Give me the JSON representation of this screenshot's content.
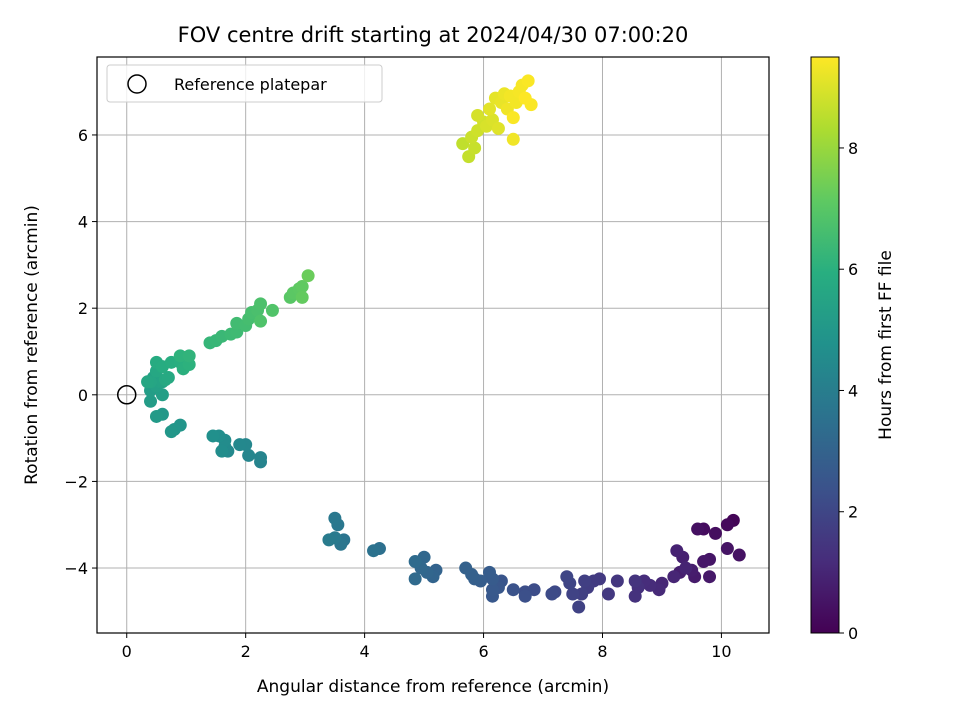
{
  "chart_data": {
    "type": "scatter",
    "title": "FOV centre drift starting at 2024/04/30 07:00:20",
    "xlabel": "Angular distance from reference (arcmin)",
    "ylabel": "Rotation from reference (arcmin)",
    "xlim": [
      -0.5,
      10.8
    ],
    "ylim": [
      -5.5,
      7.8
    ],
    "x_ticks": [
      0,
      2,
      4,
      6,
      8,
      10
    ],
    "y_ticks": [
      -4,
      -2,
      0,
      2,
      4,
      6
    ],
    "x_tick_labels": [
      "0",
      "2",
      "4",
      "6",
      "8",
      "10"
    ],
    "y_tick_labels": [
      "−4",
      "−2",
      "0",
      "2",
      "4",
      "6"
    ],
    "grid": true,
    "legend": {
      "placement": "top-left",
      "entries": [
        "Reference platepar"
      ]
    },
    "reference_point": {
      "x": 0,
      "y": 0,
      "label": "Reference platepar"
    },
    "colorbar": {
      "label": "Hours from first FF file",
      "range": [
        0,
        9.5
      ],
      "ticks": [
        0,
        2,
        4,
        6,
        8
      ],
      "tick_labels": [
        "0",
        "2",
        "4",
        "6",
        "8"
      ],
      "colormap": "viridis"
    },
    "marker_color": "#1f77b4",
    "points": [
      [
        10.2,
        -2.9,
        0.1
      ],
      [
        10.1,
        -3.0,
        0.2
      ],
      [
        9.7,
        -3.1,
        0.3
      ],
      [
        9.9,
        -3.2,
        0.35
      ],
      [
        9.6,
        -3.1,
        0.4
      ],
      [
        10.3,
        -3.7,
        0.45
      ],
      [
        10.1,
        -3.55,
        0.5
      ],
      [
        9.8,
        -3.8,
        0.55
      ],
      [
        9.7,
        -3.85,
        0.6
      ],
      [
        9.8,
        -4.2,
        0.65
      ],
      [
        9.55,
        -4.2,
        0.7
      ],
      [
        9.5,
        -4.05,
        0.75
      ],
      [
        9.3,
        -4.1,
        0.8
      ],
      [
        9.35,
        -3.75,
        0.85
      ],
      [
        9.25,
        -3.6,
        0.9
      ],
      [
        9.4,
        -4.0,
        0.95
      ],
      [
        9.2,
        -4.2,
        1.0
      ],
      [
        9.0,
        -4.35,
        1.05
      ],
      [
        8.95,
        -4.5,
        1.1
      ],
      [
        8.8,
        -4.4,
        1.15
      ],
      [
        8.7,
        -4.3,
        1.2
      ],
      [
        8.6,
        -4.45,
        1.3
      ],
      [
        8.55,
        -4.65,
        1.35
      ],
      [
        8.55,
        -4.3,
        1.4
      ],
      [
        8.25,
        -4.3,
        1.5
      ],
      [
        8.1,
        -4.6,
        1.55
      ],
      [
        7.95,
        -4.25,
        1.6
      ],
      [
        7.85,
        -4.3,
        1.65
      ],
      [
        7.75,
        -4.45,
        1.7
      ],
      [
        7.7,
        -4.3,
        1.75
      ],
      [
        7.65,
        -4.6,
        1.8
      ],
      [
        7.6,
        -4.9,
        1.85
      ],
      [
        7.5,
        -4.6,
        1.9
      ],
      [
        7.45,
        -4.35,
        1.95
      ],
      [
        7.4,
        -4.2,
        2.0
      ],
      [
        7.2,
        -4.55,
        2.1
      ],
      [
        7.15,
        -4.6,
        2.15
      ],
      [
        6.85,
        -4.5,
        2.2
      ],
      [
        6.7,
        -4.55,
        2.25
      ],
      [
        6.7,
        -4.65,
        2.3
      ],
      [
        6.5,
        -4.5,
        2.4
      ],
      [
        6.3,
        -4.3,
        2.5
      ],
      [
        6.25,
        -4.45,
        2.55
      ],
      [
        6.15,
        -4.65,
        2.6
      ],
      [
        6.15,
        -4.5,
        2.65
      ],
      [
        6.15,
        -4.25,
        2.7
      ],
      [
        6.1,
        -4.1,
        2.75
      ],
      [
        5.95,
        -4.3,
        2.8
      ],
      [
        5.85,
        -4.25,
        2.85
      ],
      [
        5.8,
        -4.15,
        2.9
      ],
      [
        5.7,
        -4.0,
        2.95
      ],
      [
        5.2,
        -4.05,
        3.0
      ],
      [
        5.15,
        -4.2,
        3.05
      ],
      [
        5.05,
        -4.1,
        3.1
      ],
      [
        5.0,
        -3.75,
        3.15
      ],
      [
        4.95,
        -4.0,
        3.2
      ],
      [
        4.85,
        -4.25,
        3.25
      ],
      [
        4.85,
        -3.85,
        3.3
      ],
      [
        4.25,
        -3.55,
        3.5
      ],
      [
        4.15,
        -3.6,
        3.55
      ],
      [
        3.65,
        -3.35,
        3.65
      ],
      [
        3.6,
        -3.45,
        3.7
      ],
      [
        3.55,
        -3.0,
        3.75
      ],
      [
        3.5,
        -2.85,
        3.8
      ],
      [
        3.5,
        -3.3,
        3.85
      ],
      [
        3.4,
        -3.35,
        3.9
      ],
      [
        2.25,
        -1.55,
        4.2
      ],
      [
        2.25,
        -1.45,
        4.25
      ],
      [
        2.05,
        -1.4,
        4.3
      ],
      [
        2.0,
        -1.15,
        4.35
      ],
      [
        1.9,
        -1.15,
        4.4
      ],
      [
        1.7,
        -1.3,
        4.45
      ],
      [
        1.65,
        -1.2,
        4.5
      ],
      [
        1.65,
        -1.05,
        4.55
      ],
      [
        1.6,
        -1.3,
        4.6
      ],
      [
        1.55,
        -0.95,
        4.65
      ],
      [
        1.45,
        -0.95,
        4.7
      ],
      [
        0.9,
        -0.7,
        4.9
      ],
      [
        0.8,
        -0.8,
        4.95
      ],
      [
        0.75,
        -0.85,
        5.0
      ],
      [
        0.6,
        -0.45,
        5.05
      ],
      [
        0.5,
        -0.5,
        5.1
      ],
      [
        0.4,
        -0.15,
        5.2
      ],
      [
        0.4,
        0.1,
        5.25
      ],
      [
        0.6,
        0.0,
        5.3
      ],
      [
        0.5,
        0.2,
        5.35
      ],
      [
        0.45,
        0.4,
        5.4
      ],
      [
        0.55,
        0.3,
        5.45
      ],
      [
        0.6,
        0.3,
        5.5
      ],
      [
        0.4,
        0.3,
        5.55
      ],
      [
        0.35,
        0.3,
        5.6
      ],
      [
        0.5,
        0.55,
        5.65
      ],
      [
        0.65,
        0.35,
        5.7
      ],
      [
        0.7,
        0.4,
        5.75
      ],
      [
        0.5,
        0.75,
        5.8
      ],
      [
        0.6,
        0.65,
        5.85
      ],
      [
        0.75,
        0.75,
        5.9
      ],
      [
        0.9,
        0.75,
        5.95
      ],
      [
        0.95,
        0.6,
        6.0
      ],
      [
        1.05,
        0.7,
        6.05
      ],
      [
        0.9,
        0.9,
        6.1
      ],
      [
        1.05,
        0.9,
        6.15
      ],
      [
        1.4,
        1.2,
        6.25
      ],
      [
        1.5,
        1.25,
        6.3
      ],
      [
        1.6,
        1.35,
        6.35
      ],
      [
        1.75,
        1.4,
        6.4
      ],
      [
        1.85,
        1.45,
        6.45
      ],
      [
        1.85,
        1.65,
        6.5
      ],
      [
        2.0,
        1.6,
        6.55
      ],
      [
        2.05,
        1.75,
        6.6
      ],
      [
        2.1,
        1.9,
        6.65
      ],
      [
        2.2,
        1.95,
        6.7
      ],
      [
        2.25,
        2.1,
        6.75
      ],
      [
        2.25,
        1.7,
        6.8
      ],
      [
        2.45,
        1.95,
        6.85
      ],
      [
        2.75,
        2.25,
        7.0
      ],
      [
        2.8,
        2.35,
        7.05
      ],
      [
        2.9,
        2.45,
        7.1
      ],
      [
        2.95,
        2.5,
        7.15
      ],
      [
        2.95,
        2.25,
        7.2
      ],
      [
        3.05,
        2.75,
        7.3
      ],
      [
        5.65,
        5.8,
        8.6
      ],
      [
        5.75,
        5.5,
        8.65
      ],
      [
        5.85,
        5.7,
        8.7
      ],
      [
        5.8,
        5.95,
        8.75
      ],
      [
        5.9,
        6.1,
        8.8
      ],
      [
        6.0,
        6.3,
        8.85
      ],
      [
        5.9,
        6.45,
        8.9
      ],
      [
        6.05,
        6.2,
        8.95
      ],
      [
        6.15,
        6.35,
        9.0
      ],
      [
        6.25,
        6.15,
        9.05
      ],
      [
        6.1,
        6.6,
        9.1
      ],
      [
        6.2,
        6.85,
        9.15
      ],
      [
        6.3,
        6.75,
        9.2
      ],
      [
        6.35,
        6.95,
        9.25
      ],
      [
        6.4,
        6.6,
        9.3
      ],
      [
        6.5,
        5.9,
        9.3
      ],
      [
        6.45,
        6.9,
        9.35
      ],
      [
        6.55,
        6.75,
        9.35
      ],
      [
        6.6,
        7.0,
        9.4
      ],
      [
        6.65,
        7.15,
        9.4
      ],
      [
        6.75,
        7.25,
        9.45
      ],
      [
        6.8,
        6.7,
        9.45
      ],
      [
        6.5,
        6.4,
        9.45
      ],
      [
        6.7,
        6.85,
        9.5
      ]
    ]
  }
}
